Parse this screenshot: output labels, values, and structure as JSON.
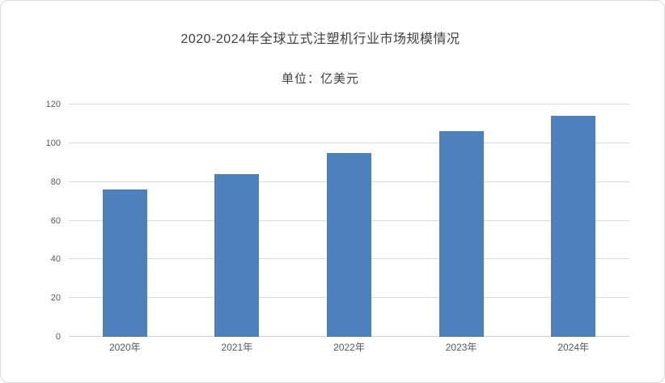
{
  "card": {
    "background": "#ffffff",
    "border_color": "#d9d9d9"
  },
  "chart_data": {
    "type": "bar",
    "title": "2020-2024年全球立式注塑机行业市场规模情况",
    "subtitle": "单位：亿美元",
    "categories": [
      "2020年",
      "2021年",
      "2022年",
      "2023年",
      "2024年"
    ],
    "values": [
      76,
      84,
      95,
      106,
      114
    ],
    "xlabel": "",
    "ylabel": "",
    "ylim": [
      0,
      120
    ],
    "yticks": [
      0,
      20,
      40,
      60,
      80,
      100,
      120
    ],
    "grid": true,
    "legend": false,
    "bar_color": "#4E80BC",
    "gridline_color": "#DCDCDC",
    "baseline_color": "#D0D0D0",
    "axis_label_color": "#595959",
    "title_color": "#404040"
  }
}
